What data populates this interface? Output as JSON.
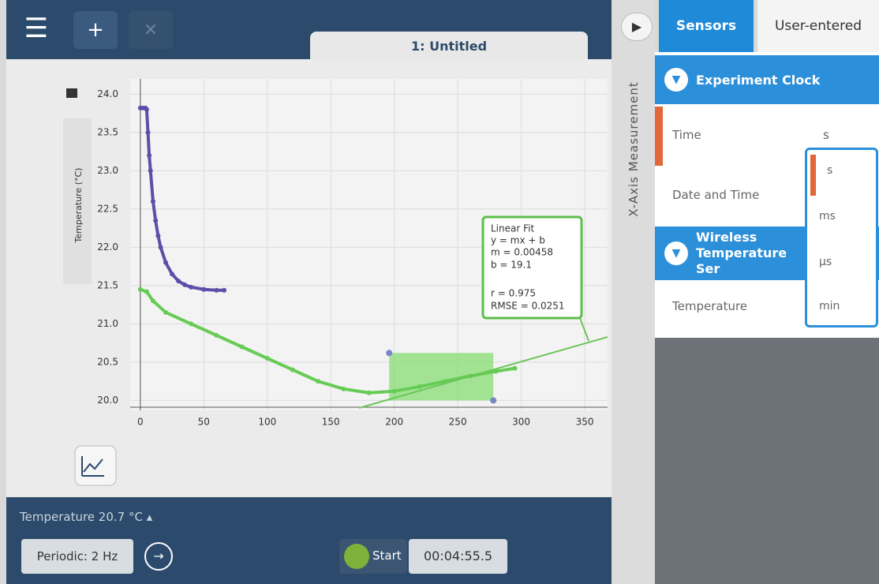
{
  "header": {
    "tab_title": "1: Untitled"
  },
  "chart_data": {
    "type": "line",
    "y_label": "Temperature (°C)",
    "xlim": [
      -8,
      368
    ],
    "ylim": [
      19.87,
      24.2
    ],
    "xticks": [
      0,
      50,
      100,
      150,
      200,
      250,
      300,
      350
    ],
    "yticks": [
      {
        "value": 20,
        "label": "20.0"
      },
      20.5,
      {
        "value": 21,
        "label": "21.0"
      },
      21.5,
      {
        "value": 22,
        "label": "22.0"
      },
      22.5,
      {
        "value": 23,
        "label": "23.0"
      },
      23.5,
      {
        "value": 24,
        "label": "24.0"
      }
    ],
    "grid": true,
    "series": [
      {
        "color": "#5b4fa8",
        "x": [
          0,
          2,
          4,
          5,
          6,
          7,
          8,
          10,
          12,
          14,
          16,
          20,
          25,
          30,
          35,
          40,
          50,
          60,
          66
        ],
        "values": [
          23.82,
          23.82,
          23.82,
          23.8,
          23.5,
          23.2,
          23.0,
          22.6,
          22.35,
          22.15,
          22.0,
          21.8,
          21.65,
          21.56,
          21.51,
          21.48,
          21.45,
          21.44,
          21.44
        ]
      },
      {
        "color": "#66cc55",
        "x": [
          0,
          5,
          10,
          20,
          40,
          60,
          80,
          100,
          120,
          140,
          160,
          180,
          200,
          220,
          240,
          260,
          280,
          295
        ],
        "values": [
          21.45,
          21.42,
          21.3,
          21.15,
          21.0,
          20.85,
          20.7,
          20.55,
          20.4,
          20.25,
          20.15,
          20.1,
          20.12,
          20.18,
          20.25,
          20.32,
          20.38,
          20.42
        ]
      }
    ],
    "selection": {
      "xlim": [
        196,
        278
      ],
      "ylim": [
        20.0,
        20.62
      ]
    },
    "annotation": [
      "Linear Fit",
      "y = mx + b",
      "m = 0.00458",
      "b = 19.1",
      "r = 0.975",
      "RMSE = 0.0251"
    ]
  },
  "footer": {
    "live_reading": "Temperature 20.7 °C",
    "rate": "Periodic: 2 Hz",
    "start": "Start",
    "timer": "00:04:55.5"
  },
  "sidebar": {
    "axis_title": "X-Axis Measurement",
    "tabs": [
      "Sensors",
      "User-entered"
    ],
    "groups": [
      {
        "title": "Experiment Clock",
        "rows": [
          "Time",
          "Date and Time"
        ]
      },
      {
        "title": "Wireless Temperature Ser",
        "rows": [
          "Temperature"
        ]
      }
    ],
    "time_unit": "s",
    "unit_options": [
      "s",
      "ms",
      "µs",
      "min"
    ]
  }
}
